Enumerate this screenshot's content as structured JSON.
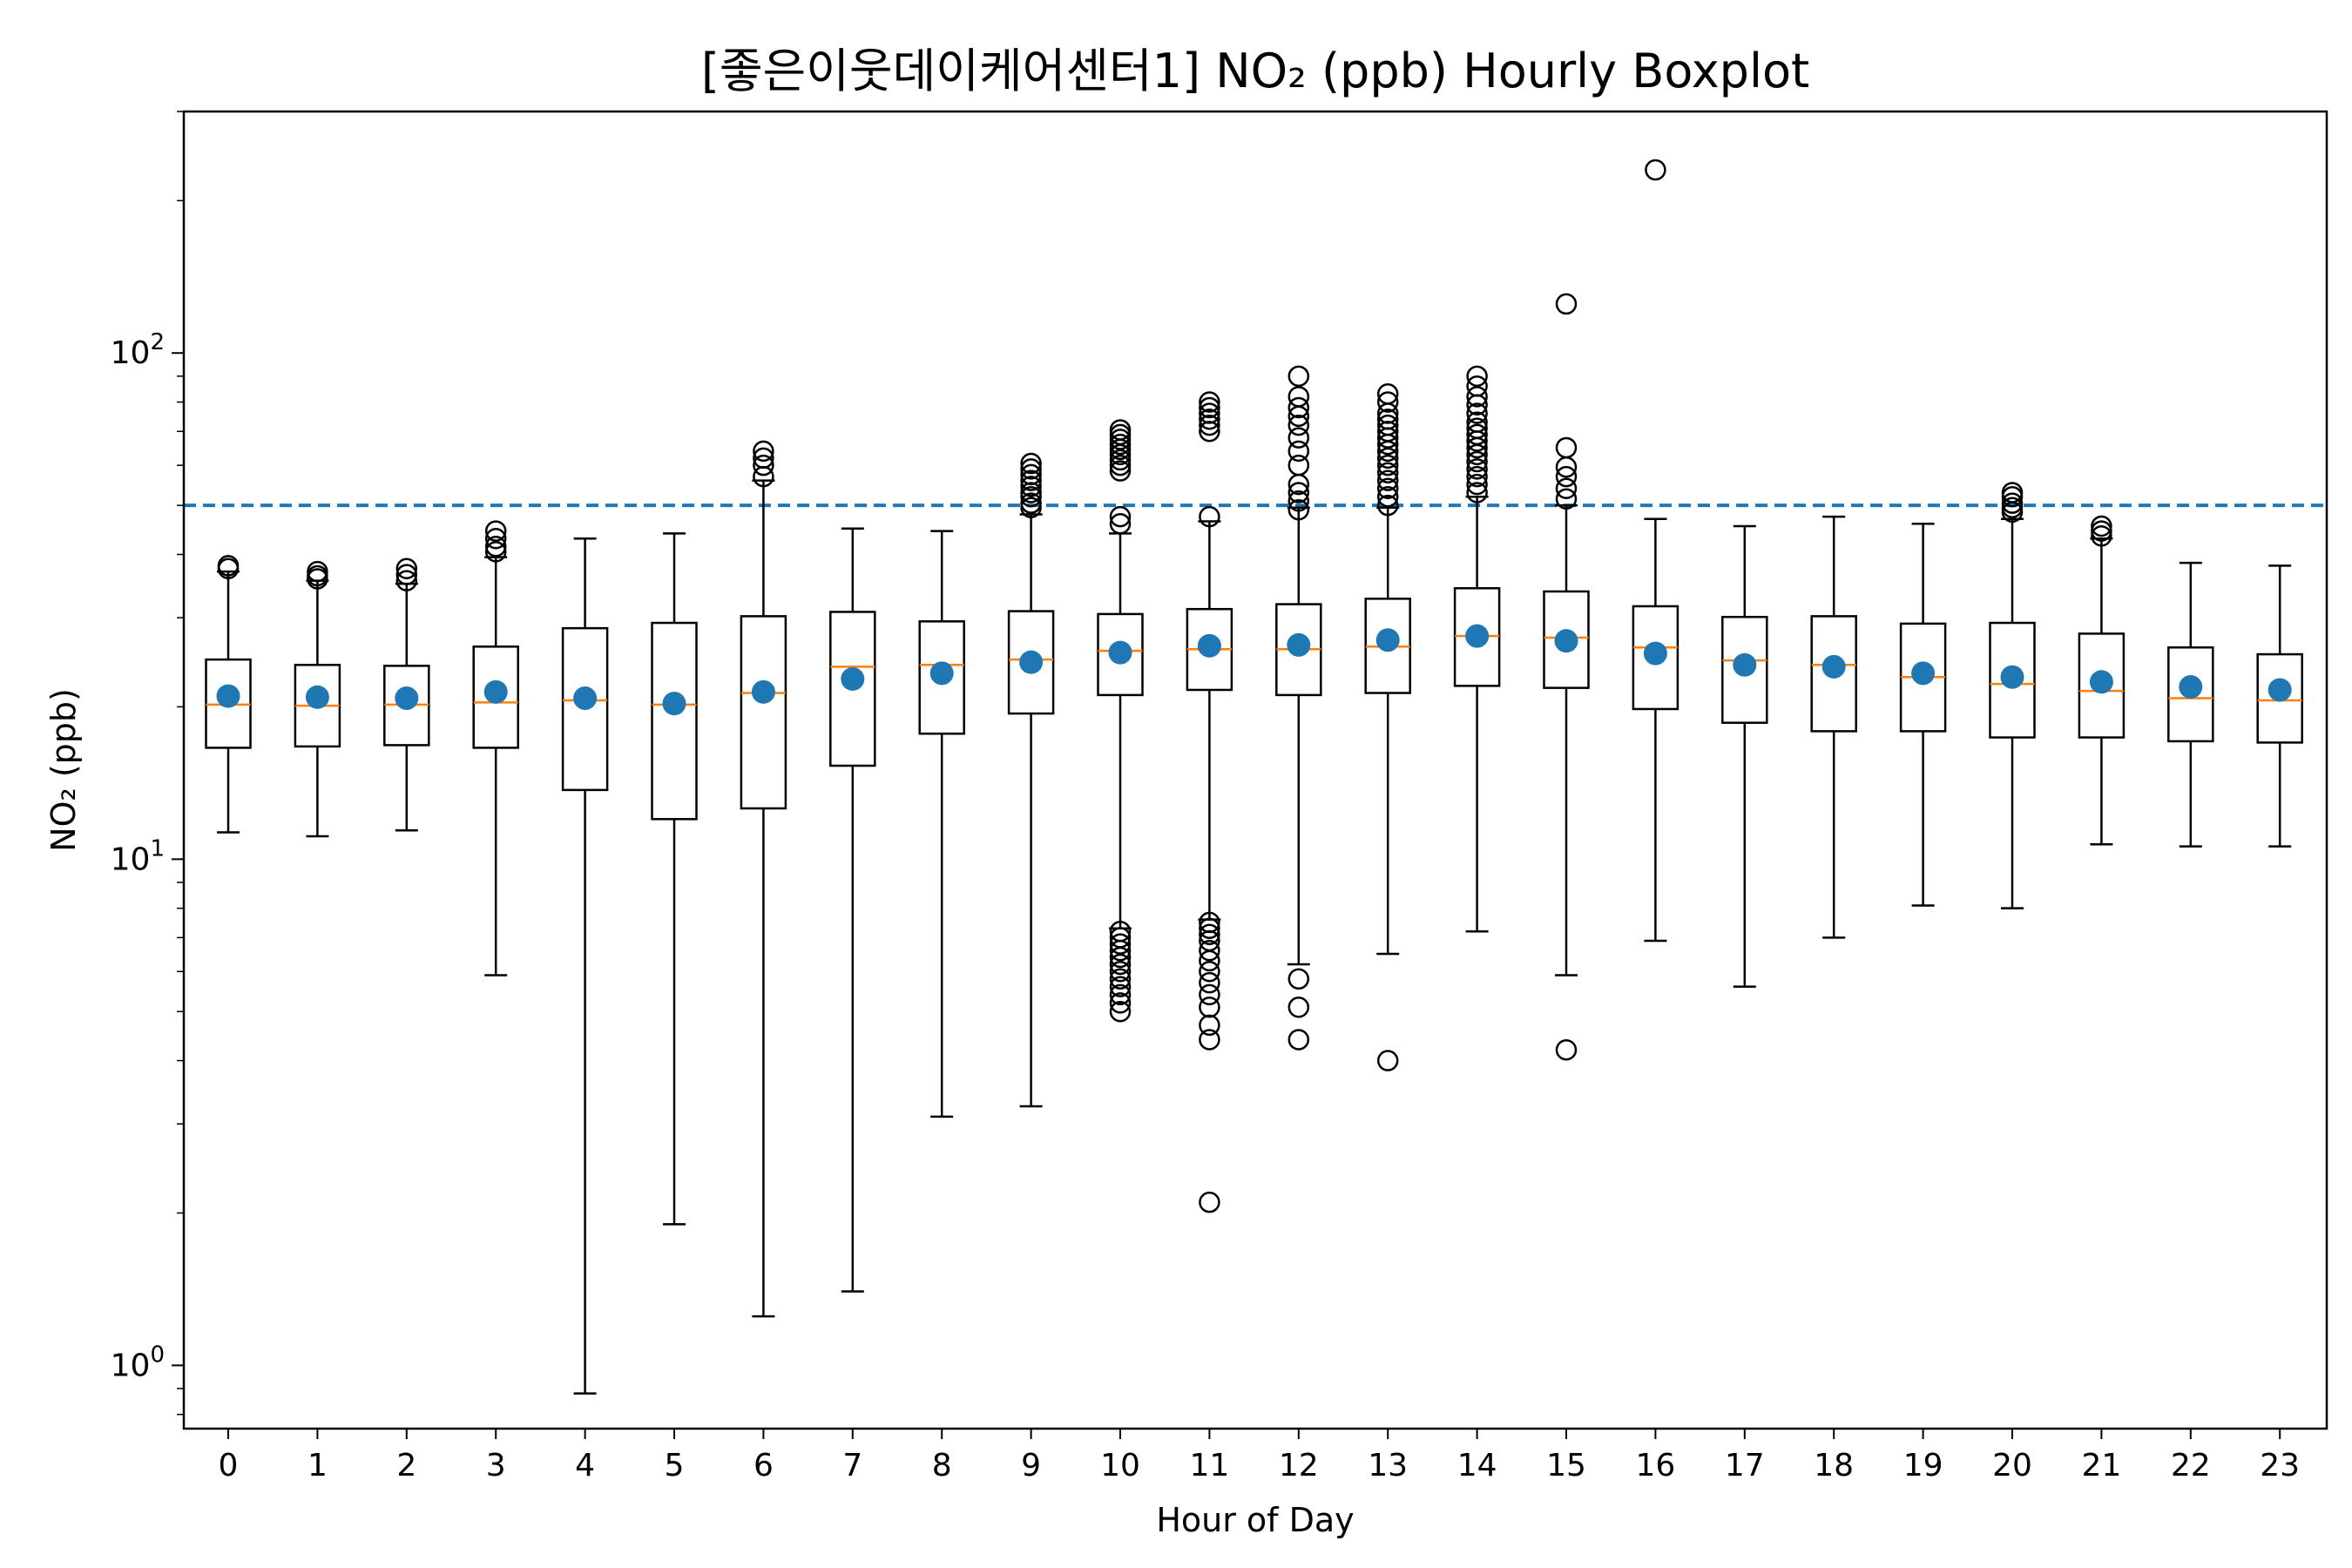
{
  "chart_data": {
    "type": "box",
    "title": "[좋은이웃데이케어센터1] NO₂ (ppb) Hourly Boxplot",
    "xlabel": "Hour of Day",
    "ylabel": "NO₂ (ppb)",
    "yscale": "log",
    "ylim": [
      0.75,
      300
    ],
    "yticks": [
      {
        "value": 1,
        "base": "10",
        "exp": "0"
      },
      {
        "value": 10,
        "base": "10",
        "exp": "1"
      },
      {
        "value": 100,
        "base": "10",
        "exp": "2"
      }
    ],
    "grid": false,
    "reference_line": {
      "value": 50,
      "style": "dashed",
      "color": "#1f77b4"
    },
    "colors": {
      "box": "#000000",
      "median": "#ff7f0e",
      "mean": "#1f77b4",
      "reference": "#1f77b4"
    },
    "categories": [
      "0",
      "1",
      "2",
      "3",
      "4",
      "5",
      "6",
      "7",
      "8",
      "9",
      "10",
      "11",
      "12",
      "13",
      "14",
      "15",
      "16",
      "17",
      "18",
      "19",
      "20",
      "21",
      "22",
      "23"
    ],
    "boxes": [
      {
        "hour": "0",
        "whislo": 11.3,
        "q1": 16.6,
        "median": 20.2,
        "q3": 24.8,
        "whishi": 37.0,
        "mean": 21.0,
        "fliers": [
          37.5,
          38.0
        ]
      },
      {
        "hour": "1",
        "whislo": 11.1,
        "q1": 16.7,
        "median": 20.1,
        "q3": 24.2,
        "whishi": 35.5,
        "mean": 20.9,
        "fliers": [
          35.8,
          36.3,
          37.0
        ]
      },
      {
        "hour": "2",
        "whislo": 11.4,
        "q1": 16.8,
        "median": 20.2,
        "q3": 24.1,
        "whishi": 35.0,
        "mean": 20.8,
        "fliers": [
          35.5,
          36.5,
          37.5
        ]
      },
      {
        "hour": "3",
        "whislo": 5.9,
        "q1": 16.6,
        "median": 20.4,
        "q3": 26.3,
        "whishi": 39.5,
        "mean": 21.4,
        "fliers": [
          40.5,
          41.5,
          43.0,
          44.5
        ]
      },
      {
        "hour": "4",
        "whislo": 0.88,
        "q1": 13.7,
        "median": 20.6,
        "q3": 28.6,
        "whishi": 43.0,
        "mean": 20.8,
        "fliers": []
      },
      {
        "hour": "5",
        "whislo": 1.9,
        "q1": 12.0,
        "median": 20.2,
        "q3": 29.3,
        "whishi": 44.0,
        "mean": 20.3,
        "fliers": []
      },
      {
        "hour": "6",
        "whislo": 1.25,
        "q1": 12.6,
        "median": 21.3,
        "q3": 30.2,
        "whishi": 56.0,
        "mean": 21.4,
        "fliers": [
          57.0,
          60.0,
          62.0,
          64.0
        ]
      },
      {
        "hour": "7",
        "whislo": 1.4,
        "q1": 15.3,
        "median": 24.0,
        "q3": 30.8,
        "whishi": 45.0,
        "mean": 22.7,
        "fliers": []
      },
      {
        "hour": "8",
        "whislo": 3.1,
        "q1": 17.7,
        "median": 24.2,
        "q3": 29.5,
        "whishi": 44.5,
        "mean": 23.3,
        "fliers": []
      },
      {
        "hour": "9",
        "whislo": 3.25,
        "q1": 19.4,
        "median": 24.8,
        "q3": 30.9,
        "whishi": 48.0,
        "mean": 24.5,
        "fliers": [
          49.5,
          50.5,
          52.0,
          53.0,
          54.5,
          56.0,
          57.5,
          59.0,
          60.5
        ]
      },
      {
        "hour": "10",
        "whislo": 7.3,
        "q1": 21.1,
        "median": 25.8,
        "q3": 30.5,
        "whishi": 44.0,
        "mean": 25.6,
        "fliers": [
          46.0,
          47.5,
          58.5,
          60.0,
          61.5,
          63.0,
          64.5,
          66.0,
          67.5,
          69.0,
          70.5,
          7.2,
          7.0,
          6.8,
          6.6,
          6.4,
          6.2,
          6.0,
          5.8,
          5.6,
          5.4,
          5.2,
          5.0
        ]
      },
      {
        "hour": "11",
        "whislo": 7.6,
        "q1": 21.6,
        "median": 26.0,
        "q3": 31.2,
        "whishi": 46.5,
        "mean": 26.4,
        "fliers": [
          47.5,
          70.0,
          72.0,
          74.0,
          76.0,
          78.0,
          80.0,
          7.5,
          7.3,
          7.1,
          6.9,
          6.6,
          6.3,
          6.0,
          5.7,
          5.4,
          5.1,
          4.7,
          4.4,
          2.1
        ]
      },
      {
        "hour": "12",
        "whislo": 6.2,
        "q1": 21.1,
        "median": 26.0,
        "q3": 31.9,
        "whishi": 49.5,
        "mean": 26.5,
        "fliers": [
          49.0,
          51.0,
          53.0,
          55.0,
          60.0,
          64.0,
          68.0,
          72.0,
          75.0,
          78.0,
          82.0,
          90.0,
          5.8,
          5.1,
          4.4
        ]
      },
      {
        "hour": "13",
        "whislo": 6.5,
        "q1": 21.3,
        "median": 26.3,
        "q3": 32.7,
        "whishi": 49.5,
        "mean": 27.1,
        "fliers": [
          50.0,
          52.0,
          54.0,
          56.0,
          58.0,
          60.0,
          62.0,
          64.0,
          66.0,
          68.0,
          70.0,
          72.0,
          74.0,
          76.0,
          80.0,
          83.0,
          4.0
        ]
      },
      {
        "hour": "14",
        "whislo": 7.2,
        "q1": 22.0,
        "median": 27.6,
        "q3": 34.3,
        "whishi": 52.0,
        "mean": 27.6,
        "fliers": [
          53.0,
          55.0,
          57.0,
          59.0,
          61.0,
          63.0,
          65.0,
          67.0,
          69.0,
          71.0,
          73.0,
          76.0,
          79.0,
          82.0,
          86.0,
          90.0
        ]
      },
      {
        "hour": "15",
        "whislo": 5.9,
        "q1": 21.8,
        "median": 27.4,
        "q3": 33.8,
        "whishi": 50.0,
        "mean": 27.0,
        "fliers": [
          51.5,
          54.0,
          57.0,
          59.5,
          65.0,
          125.0,
          4.2
        ]
      },
      {
        "hour": "16",
        "whislo": 6.9,
        "q1": 19.8,
        "median": 26.2,
        "q3": 31.6,
        "whishi": 47.0,
        "mean": 25.5,
        "fliers": [
          230.0
        ]
      },
      {
        "hour": "17",
        "whislo": 5.6,
        "q1": 18.6,
        "median": 24.7,
        "q3": 30.1,
        "whishi": 45.5,
        "mean": 24.2,
        "fliers": []
      },
      {
        "hour": "18",
        "whislo": 7.0,
        "q1": 17.9,
        "median": 24.2,
        "q3": 30.2,
        "whishi": 47.5,
        "mean": 24.0,
        "fliers": []
      },
      {
        "hour": "19",
        "whislo": 8.1,
        "q1": 17.9,
        "median": 22.9,
        "q3": 29.2,
        "whishi": 46.0,
        "mean": 23.3,
        "fliers": []
      },
      {
        "hour": "20",
        "whislo": 8.0,
        "q1": 17.4,
        "median": 22.2,
        "q3": 29.3,
        "whishi": 47.0,
        "mean": 22.9,
        "fliers": [
          48.5,
          49.5,
          50.5,
          52.0,
          53.0
        ]
      },
      {
        "hour": "21",
        "whislo": 10.7,
        "q1": 17.4,
        "median": 21.5,
        "q3": 27.9,
        "whishi": 43.0,
        "mean": 22.4,
        "fliers": [
          43.5,
          44.5,
          45.5
        ]
      },
      {
        "hour": "22",
        "whislo": 10.6,
        "q1": 17.1,
        "median": 20.8,
        "q3": 26.2,
        "whishi": 38.5,
        "mean": 21.9,
        "fliers": []
      },
      {
        "hour": "23",
        "whislo": 10.6,
        "q1": 17.0,
        "median": 20.6,
        "q3": 25.4,
        "whishi": 38.0,
        "mean": 21.6,
        "fliers": []
      }
    ]
  }
}
